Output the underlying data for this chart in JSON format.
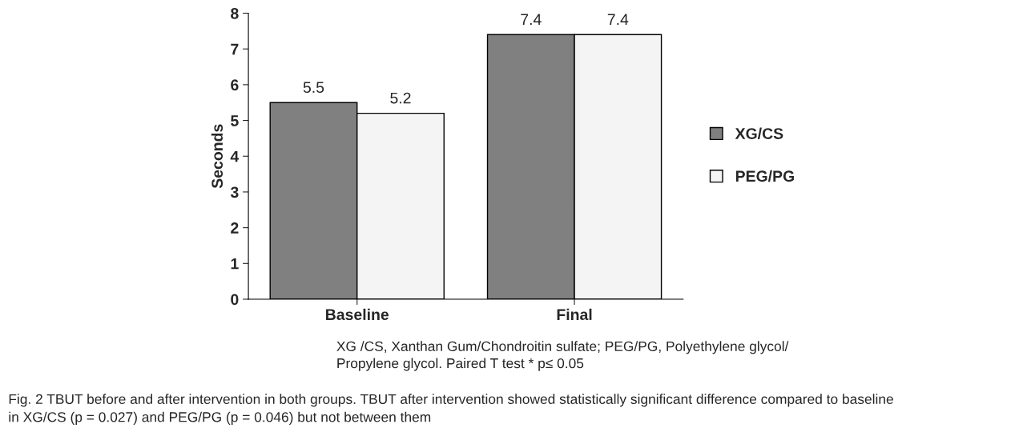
{
  "chart_data": {
    "type": "bar",
    "ylabel": "Seconds",
    "categories": [
      "Baseline",
      "Final"
    ],
    "series": [
      {
        "name": "XG/CS",
        "color": "#808080",
        "values": [
          5.5,
          7.4
        ]
      },
      {
        "name": "PEG/PG",
        "color": "#f4f4f4",
        "values": [
          5.2,
          7.4
        ]
      }
    ],
    "ylim": [
      0,
      8
    ],
    "yticks": [
      0,
      1,
      2,
      3,
      4,
      5,
      6,
      7,
      8
    ],
    "grid": false,
    "legend": "right",
    "data_labels": true,
    "annotations": [
      "XG /CS, Xanthan Gum/Chondroitin sulfate; PEG/PG, Polyethylene glycol/\nPropylene glycol. Paired T test * p≤ 0.05",
      "Fig. 2 TBUT before and after intervention in both groups. TBUT after intervention showed statistically significant difference compared to baseline\nin XG/CS (p = 0.027) and PEG/PG (p = 0.046) but not between them"
    ]
  }
}
